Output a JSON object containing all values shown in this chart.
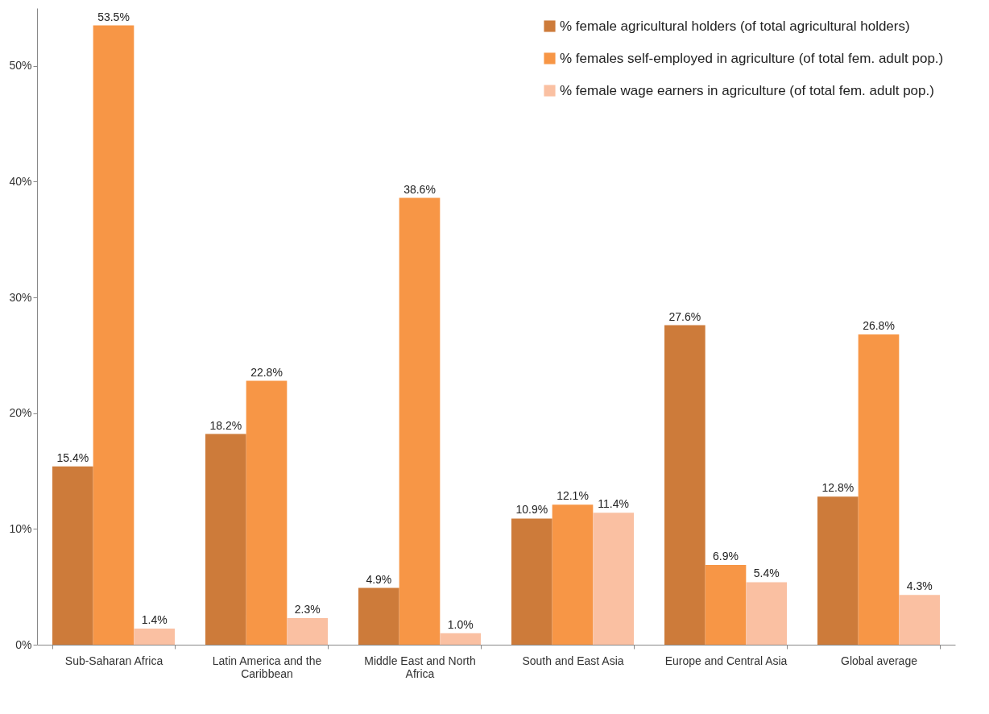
{
  "chart_data": {
    "type": "bar",
    "categories": [
      "Sub-Saharan Africa",
      "Latin America and the Caribbean",
      "Middle East and North Africa",
      "South and East Asia",
      "Europe and Central Asia",
      "Global average"
    ],
    "series": [
      {
        "name": "% female agricultural holders (of total agricultural holders)",
        "color": "#cd7b3a",
        "values": [
          15.4,
          18.2,
          4.9,
          10.9,
          27.6,
          12.8
        ]
      },
      {
        "name": "% females self-employed in agriculture (of total fem. adult pop.)",
        "color": "#f79646",
        "values": [
          53.5,
          22.8,
          38.6,
          12.1,
          6.9,
          26.8
        ]
      },
      {
        "name": "% female wage earners in agriculture (of total fem. adult pop.)",
        "color": "#fac0a2",
        "values": [
          1.4,
          2.3,
          1.0,
          11.4,
          5.4,
          4.3
        ]
      }
    ],
    "value_labels": [
      [
        "15.4%",
        "18.2%",
        "4.9%",
        "10.9%",
        "27.6%",
        "12.8%"
      ],
      [
        "53.5%",
        "22.8%",
        "38.6%",
        "12.1%",
        "6.9%",
        "26.8%"
      ],
      [
        "1.4%",
        "2.3%",
        "1.0%",
        "11.4%",
        "5.4%",
        "4.3%"
      ]
    ],
    "ylim": [
      0,
      55
    ],
    "yticks": [
      {
        "value": 0,
        "label": "0%"
      },
      {
        "value": 10,
        "label": "10%"
      },
      {
        "value": 20,
        "label": "20%"
      },
      {
        "value": 30,
        "label": "30%"
      },
      {
        "value": 40,
        "label": "40%"
      },
      {
        "value": 50,
        "label": "50%"
      }
    ],
    "grid": false,
    "legend": "top right"
  }
}
